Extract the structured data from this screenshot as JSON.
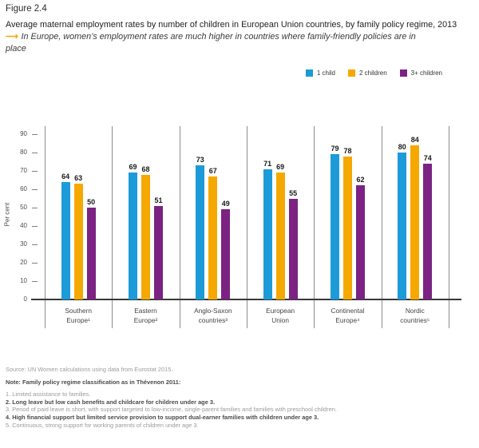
{
  "figure_label": "Figure 2.4",
  "title": "Average maternal employment rates by number of children in European Union countries, by family policy regime, 2013",
  "subtitle": {
    "arrow": "⟶",
    "line1": "In Europe, women’s employment rates are much higher in countries where family-friendly policies are in",
    "line2": "place"
  },
  "colors": {
    "accent_arrow": "#F5A800",
    "axis_line": "#8c8c8c",
    "baseline": "#383838"
  },
  "chart_data": {
    "type": "bar",
    "title": "Average maternal employment rates by number of children in European Union countries, by family policy regime, 2013",
    "categories": [
      "Southern Europe¹",
      "Eastern Europe²",
      "Anglo-Saxon countries³",
      "European Union",
      "Continental Europe⁴",
      "Nordic countries⁵"
    ],
    "series": [
      {
        "name": "1 child",
        "color": "#1C9BD8",
        "values": [
          64,
          69,
          73,
          71,
          79,
          80
        ]
      },
      {
        "name": "2 children",
        "color": "#F5A800",
        "values": [
          63,
          68,
          67,
          69,
          78,
          84
        ]
      },
      {
        "name": "3+ children",
        "color": "#7B2282",
        "values": [
          50,
          51,
          49,
          55,
          62,
          74
        ]
      }
    ],
    "xlabel": "",
    "ylabel": "Per cent",
    "yticks": [
      0,
      10,
      20,
      30,
      40,
      50,
      60,
      70,
      80,
      90
    ],
    "ylim": [
      0,
      90
    ],
    "legend_position": "top-right",
    "grid": "vertical-group-separators",
    "bar_value_labels": true
  },
  "footer": {
    "source": "Source: UN Women calculations using data from Eurostat 2015.",
    "note_header": "Note: Family policy regime classification as in Thévenon 2011:",
    "notes": [
      {
        "text": "1. Limited assistance to families.",
        "emphasis": false
      },
      {
        "text": "2. Long leave but low cash benefits and childcare for children under age 3.",
        "emphasis": true
      },
      {
        "text": "3. Period of paid leave is short, with support targeted to low-income, single-parent families and families with preschool children.",
        "emphasis": false
      },
      {
        "text": "4. High financial support but limited service provision to support dual-earner families with children under age 3.",
        "emphasis": true
      },
      {
        "text": "5. Continuous, strong support for working parents of children under age 3.",
        "emphasis": false
      }
    ]
  }
}
